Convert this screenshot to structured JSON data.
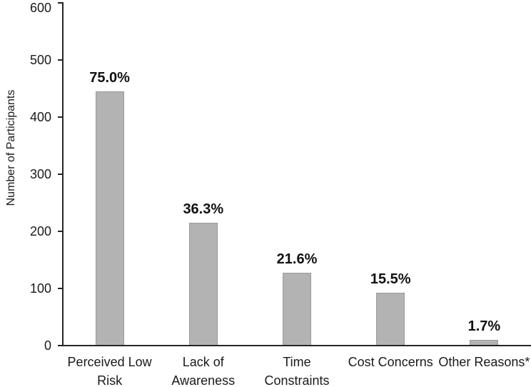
{
  "figure": {
    "background": "#ffffff"
  },
  "chart_data": {
    "type": "bar",
    "categories": [
      "Perceived Low\nRisk",
      "Lack of\nAwareness",
      "Time\nConstraints",
      "Cost Concerns",
      "Other Reasons*"
    ],
    "values": [
      445,
      215,
      128,
      92,
      10
    ],
    "bar_labels": [
      "75.0%",
      "36.3%",
      "21.6%",
      "15.5%",
      "1.7%"
    ],
    "title": "",
    "xlabel": "",
    "ylabel": "Number of Participants",
    "ylim": [
      0,
      600
    ],
    "ytick_interval": 100,
    "ytick_labels": [
      "0",
      "100",
      "200",
      "300",
      "400",
      "500",
      "600"
    ],
    "grid": false,
    "legend": false,
    "bar_color": "#b3b3b3",
    "bar_border_color": "#9a9a9a",
    "axis_color": "#262626",
    "text_color": "#1a1a1a"
  }
}
